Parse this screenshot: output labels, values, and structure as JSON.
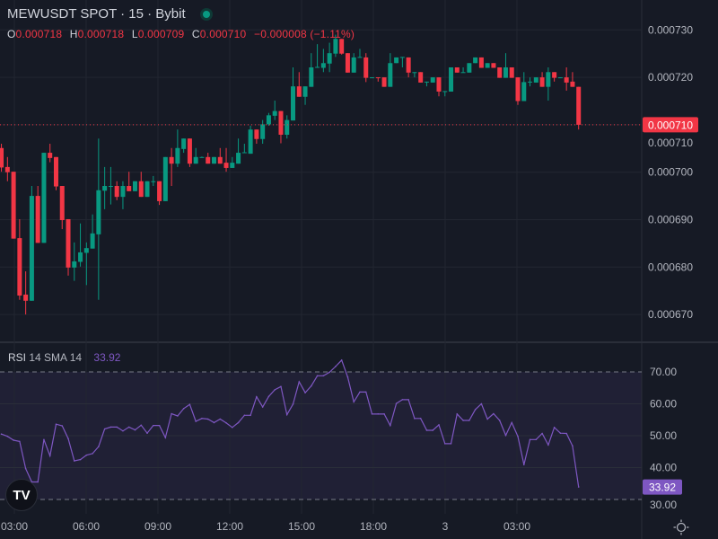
{
  "header": {
    "symbol_title": "MEWUSDT SPOT · 15 · Bybit",
    "market_status_color": "#089981",
    "ohlc": {
      "o_label": "O",
      "o_value": "0.000718",
      "h_label": "H",
      "h_value": "0.000718",
      "l_label": "L",
      "l_value": "0.000709",
      "c_label": "C",
      "c_value": "0.000710",
      "change": "−0.000008 (−1.11%)"
    }
  },
  "rsi_legend": {
    "name": "RSI",
    "params": "14 SMA 14",
    "value": "33.92"
  },
  "colors": {
    "up": "#089981",
    "down": "#f23645",
    "rsi": "#7e57c2",
    "background": "#161a25",
    "grid": "#2a2e39"
  },
  "icons": {
    "logo": "tradingview-logo-icon",
    "settings": "settings-sun-icon"
  },
  "chart_data": [
    {
      "type": "candlestick",
      "title": "MEWUSDT SPOT · 15 · Bybit",
      "interval": "15",
      "ylim": [
        0.0006665,
        0.000732
      ],
      "y_ticks": [
        "0.000730",
        "0.000720",
        "0.000710",
        "0.000700",
        "0.000690",
        "0.000680",
        "0.000670"
      ],
      "x_ticks": [
        "03:00",
        "06:00",
        "09:00",
        "12:00",
        "15:00",
        "18:00",
        "3",
        "03:00"
      ],
      "last_price_label": "0.000710",
      "grid": true,
      "ohlc": [
        [
          0.0007051,
          0.000706,
          0.0007001,
          0.000701
        ],
        [
          0.0007011,
          0.0007032,
          0.0006981,
          0.0007
        ],
        [
          0.0007001,
          0.0007001,
          0.000686,
          0.000686
        ],
        [
          0.0006861,
          0.0006901,
          0.0006731,
          0.000674
        ],
        [
          0.0006742,
          0.0006791,
          0.00067,
          0.0006729
        ],
        [
          0.0006729,
          0.0006971,
          0.0006729,
          0.000695
        ],
        [
          0.000695,
          0.0006971,
          0.0006851,
          0.0006851
        ],
        [
          0.0006851,
          0.0007041,
          0.0006851,
          0.0007041
        ],
        [
          0.0007041,
          0.000706,
          0.0007021,
          0.000703
        ],
        [
          0.0007032,
          0.0007032,
          0.0006962,
          0.000697
        ],
        [
          0.0006971,
          0.0006971,
          0.000688,
          0.0006899
        ],
        [
          0.0006901,
          0.0006901,
          0.0006782,
          0.0006799
        ],
        [
          0.0006799,
          0.0006852,
          0.0006771,
          0.0006812
        ],
        [
          0.0006811,
          0.0006892,
          0.0006801,
          0.0006831
        ],
        [
          0.000683,
          0.0006852,
          0.0006762,
          0.000684
        ],
        [
          0.0006839,
          0.0006911,
          0.0006839,
          0.0006871
        ],
        [
          0.0006869,
          0.0007071,
          0.0006731,
          0.0006962
        ],
        [
          0.0006961,
          0.0007011,
          0.0006922,
          0.0006971
        ],
        [
          0.000697,
          0.0007011,
          0.0006932,
          0.0006971
        ],
        [
          0.0006971,
          0.0006981,
          0.0006941,
          0.0006948
        ],
        [
          0.0006948,
          0.0006981,
          0.0006922,
          0.0006971
        ],
        [
          0.0006971,
          0.0007001,
          0.000696,
          0.000696
        ],
        [
          0.000696,
          0.0006981,
          0.000696,
          0.0006981
        ],
        [
          0.0006981,
          0.0007001,
          0.0006948,
          0.0006948
        ],
        [
          0.0006948,
          0.0006981,
          0.0006948,
          0.0006981
        ],
        [
          0.000698,
          0.0006992,
          0.0006971,
          0.0006981
        ],
        [
          0.0006981,
          0.0006981,
          0.0006931,
          0.0006939
        ],
        [
          0.0006939,
          0.0007032,
          0.0006939,
          0.0007032
        ],
        [
          0.0007032,
          0.0007051,
          0.0006971,
          0.0007018
        ],
        [
          0.0007018,
          0.000709,
          0.0007011,
          0.0007051
        ],
        [
          0.0007049,
          0.0007071,
          0.0007041,
          0.0007071
        ],
        [
          0.0007071,
          0.0007071,
          0.0007011,
          0.0007018
        ],
        [
          0.0007018,
          0.0007051,
          0.0007018,
          0.0007032
        ],
        [
          0.0007031,
          0.0007033,
          0.0007031,
          0.0007032
        ],
        [
          0.0007032,
          0.0007041,
          0.0007018,
          0.0007018
        ],
        [
          0.0007018,
          0.0007032,
          0.0007018,
          0.0007032
        ],
        [
          0.0007032,
          0.0007051,
          0.0007018,
          0.0007018
        ],
        [
          0.000702,
          0.0007051,
          0.0007001,
          0.0007009
        ],
        [
          0.0007009,
          0.0007032,
          0.0007009,
          0.000702
        ],
        [
          0.0007018,
          0.0007071,
          0.0007018,
          0.0007041
        ],
        [
          0.0007041,
          0.000706,
          0.0007041,
          0.0007042
        ],
        [
          0.0007039,
          0.0007098,
          0.0007039,
          0.000709
        ],
        [
          0.000709,
          0.000709,
          0.000706,
          0.000707
        ],
        [
          0.000707,
          0.000711,
          0.000706,
          0.0007101
        ],
        [
          0.0007101,
          0.0007125,
          0.0007098,
          0.000712
        ],
        [
          0.0007119,
          0.0007151,
          0.000711,
          0.0007129
        ],
        [
          0.0007129,
          0.0007129,
          0.0007061,
          0.0007079
        ],
        [
          0.0007079,
          0.000712,
          0.0007071,
          0.000711
        ],
        [
          0.0007109,
          0.0007221,
          0.0007109,
          0.0007181
        ],
        [
          0.0007181,
          0.0007211,
          0.0007159,
          0.0007159
        ],
        [
          0.0007159,
          0.0007181,
          0.0007142,
          0.0007181
        ],
        [
          0.000718,
          0.0007251,
          0.000718,
          0.0007221
        ],
        [
          0.0007221,
          0.000727,
          0.000722,
          0.0007222
        ],
        [
          0.000722,
          0.000726,
          0.0007211,
          0.000723
        ],
        [
          0.0007229,
          0.0007273,
          0.0007211,
          0.0007251
        ],
        [
          0.000725,
          0.000729,
          0.0007243,
          0.0007281
        ],
        [
          0.0007281,
          0.0007281,
          0.0007248,
          0.000725
        ],
        [
          0.0007251,
          0.0007251,
          0.000721,
          0.000721
        ],
        [
          0.000721,
          0.0007251,
          0.000721,
          0.0007242
        ],
        [
          0.0007242,
          0.000726,
          0.0007242,
          0.0007243
        ],
        [
          0.0007242,
          0.0007251,
          0.000719,
          0.0007199
        ],
        [
          0.0007199,
          0.00072,
          0.0007199,
          0.00072
        ],
        [
          0.00072,
          0.00072,
          0.0007191,
          0.0007199
        ],
        [
          0.00072,
          0.00072,
          0.000718,
          0.000718
        ],
        [
          0.000718,
          0.0007251,
          0.000718,
          0.000723
        ],
        [
          0.000723,
          0.0007242,
          0.000723,
          0.0007242
        ],
        [
          0.0007242,
          0.0007243,
          0.0007221,
          0.0007243
        ],
        [
          0.0007242,
          0.0007242,
          0.00072,
          0.000721
        ],
        [
          0.000721,
          0.0007211,
          0.00072,
          0.0007211
        ],
        [
          0.0007211,
          0.0007211,
          0.0007189,
          0.0007189
        ],
        [
          0.000719,
          0.0007191,
          0.0007181,
          0.0007191
        ],
        [
          0.0007189,
          0.00072,
          0.0007189,
          0.00072
        ],
        [
          0.00072,
          0.00072,
          0.000716,
          0.000717
        ],
        [
          0.000717,
          0.0007171,
          0.000716,
          0.0007171
        ],
        [
          0.000717,
          0.0007221,
          0.000717,
          0.0007221
        ],
        [
          0.0007221,
          0.0007221,
          0.000721,
          0.000721
        ],
        [
          0.000721,
          0.0007221,
          0.000721,
          0.0007211
        ],
        [
          0.000721,
          0.000723,
          0.000721,
          0.000723
        ],
        [
          0.000723,
          0.0007242,
          0.000723,
          0.0007242
        ],
        [
          0.0007242,
          0.0007242,
          0.000722,
          0.000722
        ],
        [
          0.000722,
          0.000723,
          0.000722,
          0.000723
        ],
        [
          0.000723,
          0.000723,
          0.000722,
          0.000722
        ],
        [
          0.0007221,
          0.0007221,
          0.0007199,
          0.0007199
        ],
        [
          0.0007199,
          0.0007251,
          0.0007199,
          0.0007221
        ],
        [
          0.0007221,
          0.0007221,
          0.0007199,
          0.0007199
        ],
        [
          0.00072,
          0.00072,
          0.0007142,
          0.000715
        ],
        [
          0.000715,
          0.0007211,
          0.000715,
          0.000719
        ],
        [
          0.000719,
          0.00072,
          0.0007181,
          0.0007191
        ],
        [
          0.0007189,
          0.00072,
          0.0007189,
          0.00072
        ],
        [
          0.00072,
          0.0007211,
          0.000718,
          0.000718
        ],
        [
          0.000718,
          0.0007221,
          0.0007151,
          0.0007211
        ],
        [
          0.0007211,
          0.0007211,
          0.0007191,
          0.0007199
        ],
        [
          0.0007199,
          0.00072,
          0.0007199,
          0.00072
        ],
        [
          0.00072,
          0.0007221,
          0.0007172,
          0.0007189
        ],
        [
          0.0007191,
          0.0007211,
          0.000718,
          0.000718
        ],
        [
          0.000718,
          0.000718,
          0.000709,
          0.00071
        ]
      ]
    },
    {
      "type": "line",
      "name": "RSI 14 SMA 14",
      "ylim": [
        25,
        77
      ],
      "y_ticks": [
        "70.00",
        "60.00",
        "50.00",
        "40.00",
        "30.00"
      ],
      "bands": [
        30,
        70
      ],
      "last_value_label": "33.92",
      "values": [
        50.5,
        49.8,
        48.6,
        48.2,
        39.7,
        35.5,
        35.5,
        48.8,
        43.7,
        53.6,
        53.1,
        49.1,
        42.1,
        42.5,
        43.9,
        44.4,
        46.6,
        52.1,
        52.7,
        52.7,
        51.5,
        52.7,
        51.8,
        53.3,
        50.8,
        53.2,
        53.2,
        49.4,
        56.9,
        56.2,
        58.5,
        59.8,
        54.5,
        55.4,
        55.2,
        54.1,
        55.2,
        54.0,
        52.6,
        54.1,
        56.4,
        56.4,
        62.2,
        59.0,
        62.3,
        64.4,
        65.4,
        56.6,
        59.9,
        66.9,
        63.5,
        65.6,
        68.8,
        68.8,
        69.9,
        71.7,
        73.7,
        68.4,
        60.6,
        63.7,
        63.7,
        56.8,
        56.8,
        56.8,
        53.2,
        60.1,
        61.3,
        61.3,
        55.4,
        55.4,
        51.7,
        51.7,
        53.4,
        47.5,
        47.5,
        56.8,
        54.8,
        54.8,
        58.2,
        60.0,
        55.2,
        56.9,
        54.8,
        50.1,
        54.1,
        49.8,
        40.9,
        48.8,
        48.8,
        50.7,
        47.1,
        52.6,
        50.8,
        50.7,
        46.8,
        33.92
      ]
    }
  ]
}
